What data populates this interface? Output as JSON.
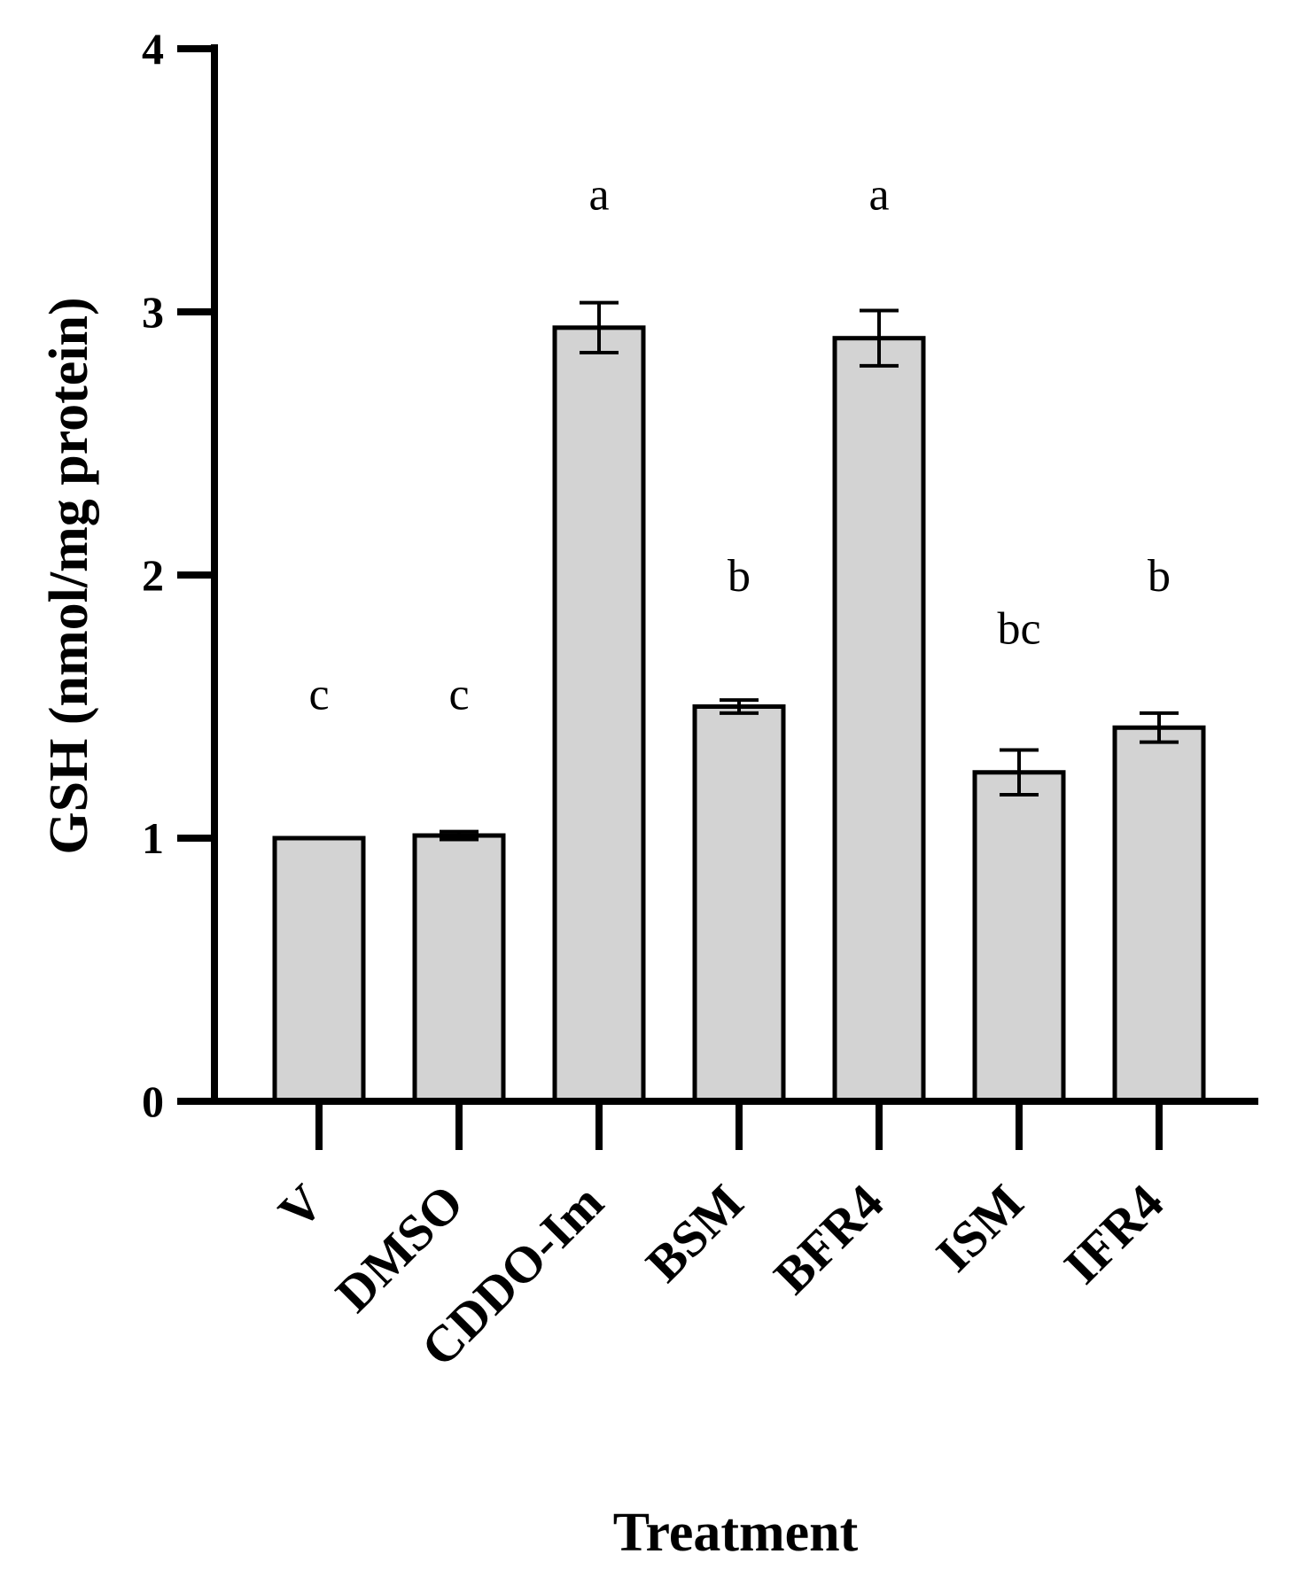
{
  "chart_data": {
    "type": "bar",
    "title": "",
    "xlabel": "Treatment",
    "ylabel": "GSH (nmol/mg protein)",
    "ylim": [
      0,
      4
    ],
    "yticks": [
      "0",
      "1",
      "2",
      "3",
      "4"
    ],
    "grid": false,
    "categories": [
      "V",
      "DMSO",
      "CDDO-Im",
      "BSM",
      "BFR4",
      "ISM",
      "IFR4"
    ],
    "values": [
      1.0,
      1.01,
      2.94,
      1.5,
      2.9,
      1.25,
      1.42
    ],
    "errors": [
      0.0,
      0.015,
      0.095,
      0.025,
      0.105,
      0.085,
      0.055
    ],
    "significance": [
      "c",
      "c",
      "a",
      "b",
      "a",
      "bc",
      "b"
    ],
    "significance_y": [
      1.55,
      1.55,
      3.45,
      2.0,
      3.45,
      1.8,
      2.0
    ],
    "bar_color": "#d3d3d3",
    "edge_color": "#000000"
  }
}
